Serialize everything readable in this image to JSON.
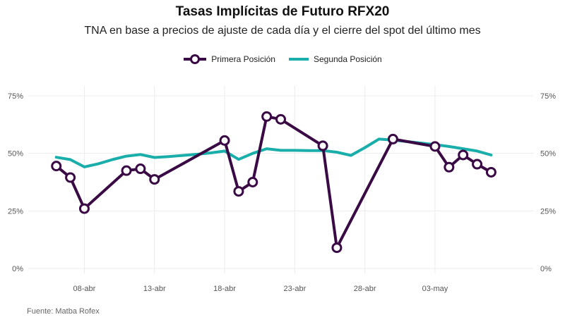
{
  "title": "Tasas Implícitas de Futuro RFX20",
  "subtitle": "TNA en base a precios de ajuste de cada día y el cierre del spot del último mes",
  "caption": "Fuente: Matba Rofex",
  "colors": {
    "primera": "#3a0a45",
    "segunda": "#1aaeaa",
    "grid": "#ececec"
  },
  "chart_data": {
    "type": "line",
    "title": "Tasas Implícitas de Futuro RFX20",
    "subtitle": "TNA en base a precios de ajuste de cada día y el cierre del spot del último mes",
    "ylim": [
      0,
      75
    ],
    "yticks": [
      "0%",
      "25%",
      "50%",
      "75%"
    ],
    "ytick_values": [
      0,
      25,
      50,
      75
    ],
    "xlim": [
      "2021-04-04",
      "2021-05-10"
    ],
    "xticks": [
      "08-abr",
      "13-abr",
      "18-abr",
      "23-abr",
      "28-abr",
      "03-may"
    ],
    "xtick_dates": [
      "2021-04-08",
      "2021-04-13",
      "2021-04-18",
      "2021-04-23",
      "2021-04-28",
      "2021-05-03"
    ],
    "legend_position": "top",
    "grid": true,
    "series": [
      {
        "name": "Primera Posición",
        "style": "line-with-hollow-markers",
        "points": [
          {
            "x": "2021-04-06",
            "y": 44.5
          },
          {
            "x": "2021-04-07",
            "y": 39.5
          },
          {
            "x": "2021-04-08",
            "y": 26
          },
          {
            "x": "2021-04-11",
            "y": 42.5
          },
          {
            "x": "2021-04-12",
            "y": 43.3
          },
          {
            "x": "2021-04-13",
            "y": 38.7
          },
          {
            "x": "2021-04-18",
            "y": 55.6
          },
          {
            "x": "2021-04-19",
            "y": 33.5
          },
          {
            "x": "2021-04-20",
            "y": 37.5
          },
          {
            "x": "2021-04-21",
            "y": 66
          },
          {
            "x": "2021-04-22",
            "y": 64.8
          },
          {
            "x": "2021-04-25",
            "y": 53.3
          },
          {
            "x": "2021-04-26",
            "y": 9
          },
          {
            "x": "2021-04-30",
            "y": 56.2
          },
          {
            "x": "2021-05-03",
            "y": 53
          },
          {
            "x": "2021-05-04",
            "y": 44
          },
          {
            "x": "2021-05-05",
            "y": 49.3
          },
          {
            "x": "2021-05-06",
            "y": 45.3
          },
          {
            "x": "2021-05-07",
            "y": 41.8
          }
        ]
      },
      {
        "name": "Segunda Posición",
        "style": "line",
        "points": [
          {
            "x": "2021-04-06",
            "y": 48.3
          },
          {
            "x": "2021-04-07",
            "y": 47.3
          },
          {
            "x": "2021-04-08",
            "y": 44.1
          },
          {
            "x": "2021-04-09",
            "y": 45.5
          },
          {
            "x": "2021-04-10",
            "y": 47.3
          },
          {
            "x": "2021-04-11",
            "y": 48.8
          },
          {
            "x": "2021-04-12",
            "y": 49.5
          },
          {
            "x": "2021-04-13",
            "y": 48.2
          },
          {
            "x": "2021-04-14",
            "y": 48.6
          },
          {
            "x": "2021-04-15",
            "y": 49.1
          },
          {
            "x": "2021-04-16",
            "y": 49.6
          },
          {
            "x": "2021-04-17",
            "y": 50.2
          },
          {
            "x": "2021-04-18",
            "y": 51
          },
          {
            "x": "2021-04-19",
            "y": 47.4
          },
          {
            "x": "2021-04-20",
            "y": 50
          },
          {
            "x": "2021-04-21",
            "y": 52
          },
          {
            "x": "2021-04-22",
            "y": 51.3
          },
          {
            "x": "2021-04-23",
            "y": 51.3
          },
          {
            "x": "2021-04-24",
            "y": 51.2
          },
          {
            "x": "2021-04-25",
            "y": 51.2
          },
          {
            "x": "2021-04-26",
            "y": 50.5
          },
          {
            "x": "2021-04-27",
            "y": 49.1
          },
          {
            "x": "2021-04-28",
            "y": 52.5
          },
          {
            "x": "2021-04-29",
            "y": 56.2
          },
          {
            "x": "2021-04-30",
            "y": 55.8
          },
          {
            "x": "2021-05-03",
            "y": 53.8
          },
          {
            "x": "2021-05-04",
            "y": 53
          },
          {
            "x": "2021-05-05",
            "y": 52
          },
          {
            "x": "2021-05-06",
            "y": 51
          },
          {
            "x": "2021-05-07",
            "y": 49.3
          }
        ]
      }
    ]
  }
}
